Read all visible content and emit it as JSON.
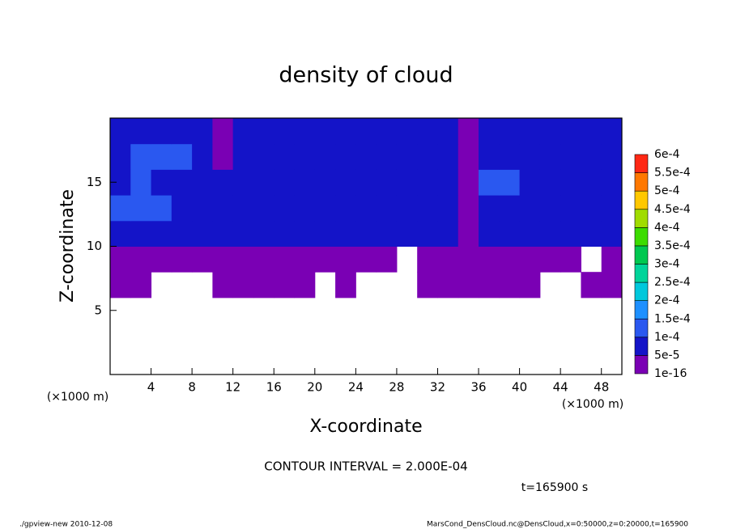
{
  "chart_data": {
    "type": "contour",
    "title": "density of cloud",
    "xlabel": "X-coordinate",
    "ylabel": "Z-coordinate",
    "x_unit": "(×1000 m)",
    "y_unit": "(×1000 m)",
    "xlim": [
      0,
      50
    ],
    "ylim": [
      0,
      20
    ],
    "xticks": [
      4,
      8,
      12,
      16,
      20,
      24,
      28,
      32,
      36,
      40,
      44,
      48
    ],
    "yticks": [
      5,
      10,
      15
    ],
    "field": {
      "x": [
        0,
        2,
        4,
        6,
        8,
        10,
        12,
        14,
        16,
        18,
        20,
        22,
        24,
        26,
        28,
        30,
        32,
        34,
        36,
        38,
        40,
        42,
        44,
        46,
        48,
        50
      ],
      "z": [
        0,
        2,
        4,
        6,
        8,
        10,
        12,
        14,
        16,
        18,
        20
      ],
      "values": [
        [
          null,
          null,
          null,
          null,
          null,
          null,
          null,
          null,
          null,
          null,
          null,
          null,
          null,
          null,
          null,
          null,
          null,
          null,
          null,
          null,
          null,
          null,
          null,
          null,
          null
        ],
        [
          null,
          null,
          null,
          null,
          null,
          null,
          null,
          null,
          null,
          null,
          null,
          null,
          null,
          null,
          null,
          null,
          null,
          null,
          null,
          null,
          null,
          null,
          null,
          null,
          null
        ],
        [
          null,
          null,
          null,
          null,
          null,
          null,
          null,
          null,
          null,
          null,
          null,
          null,
          null,
          null,
          null,
          null,
          null,
          null,
          null,
          null,
          null,
          null,
          null,
          null,
          null
        ],
        [
          1e-16,
          1e-16,
          null,
          null,
          null,
          1e-16,
          1e-16,
          1e-16,
          1e-16,
          1e-16,
          null,
          1e-16,
          null,
          null,
          null,
          1e-16,
          1e-16,
          1e-16,
          1e-16,
          1e-16,
          1e-16,
          null,
          null,
          1e-16,
          1e-16
        ],
        [
          1e-16,
          1e-16,
          1e-16,
          1e-16,
          1e-16,
          1e-16,
          1e-16,
          1e-16,
          1e-16,
          1e-16,
          1e-16,
          1e-16,
          1e-16,
          1e-16,
          null,
          1e-16,
          1e-16,
          1e-16,
          1e-16,
          1e-16,
          1e-16,
          1e-16,
          1e-16,
          null,
          1e-16
        ],
        [
          6e-05,
          6e-05,
          6e-05,
          6e-05,
          6e-05,
          6e-05,
          6e-05,
          6e-05,
          6e-05,
          6e-05,
          6e-05,
          6e-05,
          6e-05,
          6e-05,
          6e-05,
          6e-05,
          6e-05,
          1e-16,
          6e-05,
          6e-05,
          6e-05,
          6e-05,
          6e-05,
          6e-05,
          6e-05
        ],
        [
          0.00012,
          0.00012,
          0.00012,
          8e-05,
          8e-05,
          8e-05,
          8e-05,
          8e-05,
          8e-05,
          8e-05,
          8e-05,
          8e-05,
          8e-05,
          8e-05,
          8e-05,
          8e-05,
          8e-05,
          1e-16,
          8e-05,
          8e-05,
          8e-05,
          8e-05,
          8e-05,
          8e-05,
          8e-05
        ],
        [
          8e-05,
          0.00012,
          8e-05,
          8e-05,
          8e-05,
          8e-05,
          8e-05,
          8e-05,
          8e-05,
          8e-05,
          8e-05,
          8e-05,
          8e-05,
          8e-05,
          8e-05,
          8e-05,
          8e-05,
          1e-16,
          0.00012,
          0.00012,
          8e-05,
          8e-05,
          8e-05,
          8e-05,
          8e-05
        ],
        [
          8e-05,
          0.00012,
          0.00012,
          0.00012,
          8e-05,
          1e-16,
          8e-05,
          8e-05,
          8e-05,
          8e-05,
          8e-05,
          8e-05,
          8e-05,
          8e-05,
          8e-05,
          8e-05,
          8e-05,
          1e-16,
          8e-05,
          8e-05,
          8e-05,
          8e-05,
          8e-05,
          8e-05,
          8e-05
        ],
        [
          8e-05,
          8e-05,
          8e-05,
          8e-05,
          8e-05,
          1e-16,
          8e-05,
          8e-05,
          8e-05,
          8e-05,
          8e-05,
          8e-05,
          8e-05,
          8e-05,
          8e-05,
          8e-05,
          8e-05,
          1e-16,
          8e-05,
          8e-05,
          8e-05,
          8e-05,
          8e-05,
          8e-05,
          8e-05
        ]
      ]
    },
    "colorbar": {
      "levels": [
        {
          "value": 1e-16,
          "label": "1e-16"
        },
        {
          "value": 5e-05,
          "label": "5e-5"
        },
        {
          "value": 0.0001,
          "label": "1e-4"
        },
        {
          "value": 0.00015,
          "label": "1.5e-4"
        },
        {
          "value": 0.0002,
          "label": "2e-4"
        },
        {
          "value": 0.00025,
          "label": "2.5e-4"
        },
        {
          "value": 0.0003,
          "label": "3e-4"
        },
        {
          "value": 0.00035,
          "label": "3.5e-4"
        },
        {
          "value": 0.0004,
          "label": "4e-4"
        },
        {
          "value": 0.00045,
          "label": "4.5e-4"
        },
        {
          "value": 0.0005,
          "label": "5e-4"
        },
        {
          "value": 0.00055,
          "label": "5.5e-4"
        },
        {
          "value": 0.0006,
          "label": "6e-4"
        }
      ],
      "colors": [
        "#7a00b4",
        "#1414c8",
        "#2a58f0",
        "#1e90ff",
        "#00c8dc",
        "#00d49a",
        "#00c850",
        "#3cdc00",
        "#a0dc00",
        "#ffc800",
        "#ff7800",
        "#ff2814"
      ]
    },
    "contour_interval": "CONTOUR INTERVAL = 2.000E-04",
    "time_label": "t=165900 s",
    "footer_left": "./gpview-new   2010-12-08",
    "footer_right": "MarsCond_DensCloud.nc@DensCloud,x=0:50000,z=0:20000,t=165900"
  }
}
